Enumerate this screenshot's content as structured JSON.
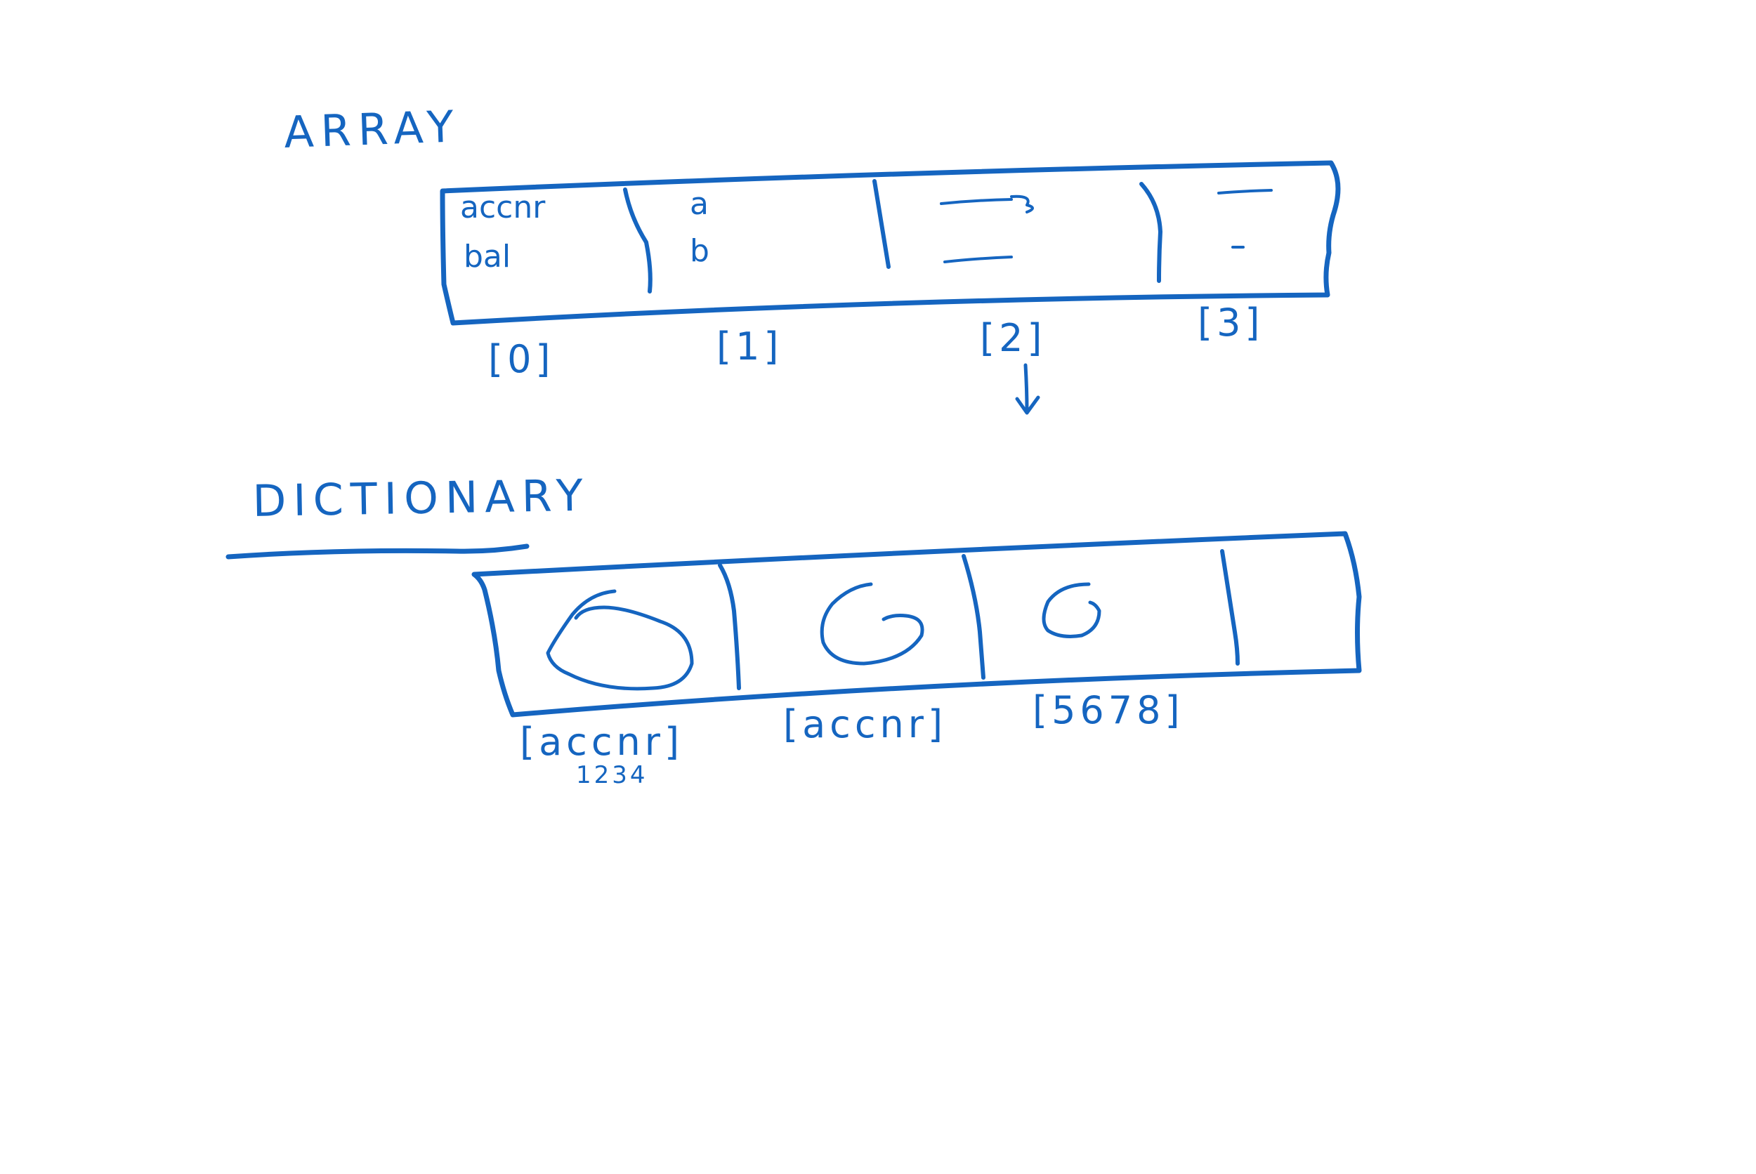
{
  "colors": {
    "ink": "#1565c0",
    "background": "#ffffff"
  },
  "array": {
    "title": "ARRAY",
    "cells": [
      {
        "lines": [
          "accnr",
          "bal"
        ]
      },
      {
        "lines": [
          "a",
          "b"
        ]
      },
      {
        "lines": [
          "",
          ""
        ]
      },
      {
        "lines": [
          "",
          ""
        ]
      }
    ],
    "indices": [
      "[0]",
      "[1]",
      "[2]",
      "[3]"
    ]
  },
  "dictionary": {
    "title": "DICTIONARY",
    "keys": [
      "[accnr]",
      "[accnr]",
      "[5678]"
    ],
    "sub_labels": [
      "1234"
    ]
  }
}
